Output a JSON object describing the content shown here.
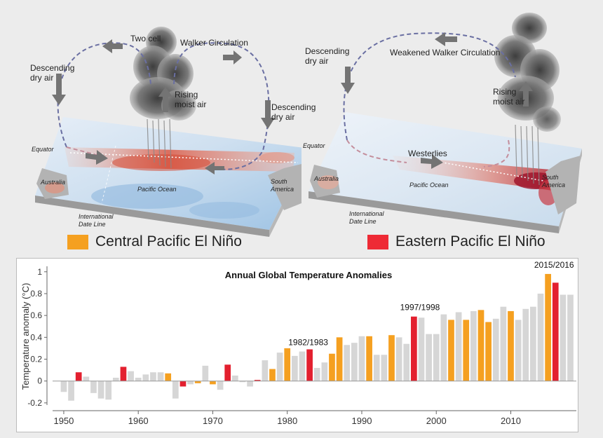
{
  "diagrams": {
    "central": {
      "labels": {
        "two_cell": "Two cell",
        "walker": "Walker Circulation",
        "descending_left": [
          "Descending",
          "dry air"
        ],
        "rising": [
          "Rising",
          "moist air"
        ],
        "descending_right": [
          "Descending",
          "dry air"
        ],
        "equator": "Equator",
        "australia": "Australia",
        "pacific": "Pacific Ocean",
        "south_america": [
          "South",
          "America"
        ],
        "date_line": [
          "International",
          "Date Line"
        ]
      },
      "legend": {
        "label": "Central Pacific El Niño",
        "color": "#f5a020"
      }
    },
    "eastern": {
      "labels": {
        "descending": [
          "Descending",
          "dry air"
        ],
        "walker": "Weakened Walker Circulation",
        "rising": [
          "Rising",
          "moist air"
        ],
        "equator": "Equator",
        "westerlies": "Westerlies",
        "australia": "Australia",
        "pacific": "Pacific Ocean",
        "south_america": [
          "South",
          "America"
        ],
        "date_line": [
          "International",
          "Date Line"
        ]
      },
      "legend": {
        "label": "Eastern Pacific El Niño",
        "color": "#ee2a35"
      }
    }
  },
  "chart_data": {
    "type": "bar",
    "title": "Annual Global Temperature Anomalies",
    "xlabel": "",
    "ylabel": "Temperature anomaly (°C)",
    "ylim": [
      -0.22,
      1.05
    ],
    "xlim": [
      1948.5,
      2018.8
    ],
    "x_ticks": [
      1950,
      1960,
      1970,
      1980,
      1990,
      2000,
      2010
    ],
    "y_ticks": [
      -0.2,
      0,
      0.2,
      0.4,
      0.6,
      0.8,
      1
    ],
    "y_tick_labels": [
      "-0.2",
      "0",
      "0.2",
      "0.4",
      "0.6",
      "0.8",
      "1"
    ],
    "colors": {
      "neutral": "#d6d6d6",
      "central": "#f5a020",
      "eastern": "#e3202f"
    },
    "years": [
      1950,
      1951,
      1952,
      1953,
      1954,
      1955,
      1956,
      1957,
      1958,
      1959,
      1960,
      1961,
      1962,
      1963,
      1964,
      1965,
      1966,
      1967,
      1968,
      1969,
      1970,
      1971,
      1972,
      1973,
      1974,
      1975,
      1976,
      1977,
      1978,
      1979,
      1980,
      1981,
      1982,
      1983,
      1984,
      1985,
      1986,
      1987,
      1988,
      1989,
      1990,
      1991,
      1992,
      1993,
      1994,
      1995,
      1996,
      1997,
      1998,
      1999,
      2000,
      2001,
      2002,
      2003,
      2004,
      2005,
      2006,
      2007,
      2008,
      2009,
      2010,
      2011,
      2012,
      2013,
      2014,
      2015,
      2016,
      2017,
      2018
    ],
    "values": [
      -0.1,
      -0.18,
      0.08,
      0.04,
      -0.11,
      -0.16,
      -0.17,
      0.03,
      0.13,
      0.09,
      0.03,
      0.06,
      0.08,
      0.08,
      0.07,
      -0.16,
      -0.05,
      -0.03,
      -0.02,
      0.14,
      -0.03,
      -0.08,
      0.15,
      0.05,
      -0.01,
      -0.05,
      0.01,
      0.19,
      0.11,
      0.26,
      0.3,
      0.23,
      0.27,
      0.29,
      0.12,
      0.17,
      0.25,
      0.4,
      0.33,
      0.35,
      0.41,
      0.41,
      0.24,
      0.24,
      0.42,
      0.4,
      0.34,
      0.59,
      0.58,
      0.43,
      0.43,
      0.61,
      0.56,
      0.63,
      0.56,
      0.64,
      0.65,
      0.54,
      0.57,
      0.68,
      0.64,
      0.56,
      0.66,
      0.68,
      0.8,
      0.98,
      0.9,
      0.79,
      0.79
    ],
    "categories": [
      "n",
      "n",
      "e",
      "n",
      "n",
      "n",
      "n",
      "n",
      "e",
      "n",
      "n",
      "n",
      "n",
      "n",
      "c",
      "n",
      "e",
      "n",
      "c",
      "n",
      "c",
      "n",
      "e",
      "n",
      "n",
      "n",
      "e",
      "n",
      "c",
      "n",
      "c",
      "n",
      "n",
      "e",
      "n",
      "n",
      "c",
      "c",
      "n",
      "n",
      "n",
      "c",
      "n",
      "n",
      "c",
      "n",
      "n",
      "e",
      "n",
      "n",
      "n",
      "n",
      "c",
      "n",
      "c",
      "n",
      "c",
      "c",
      "n",
      "n",
      "c",
      "n",
      "n",
      "n",
      "n",
      "c",
      "e",
      "n",
      "n"
    ],
    "annotations": [
      {
        "label": "1982/1983",
        "x": 1983,
        "y": 0.27
      },
      {
        "label": "1997/1998",
        "x": 1998,
        "y": 0.59
      },
      {
        "label": "2015/2016",
        "x": 2016,
        "y": 0.98
      }
    ]
  }
}
